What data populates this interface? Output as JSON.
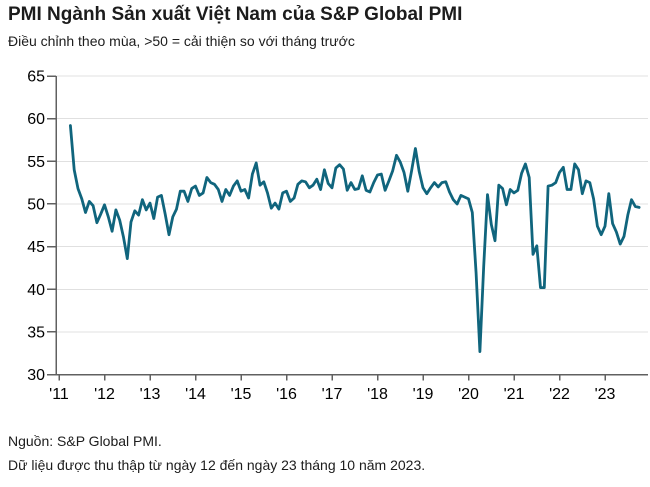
{
  "header": {
    "title": "PMI Ngành Sản xuất Việt Nam của S&P Global PMI",
    "subtitle": "Điều chỉnh theo mùa, >50 = cải thiện so với tháng trước"
  },
  "footer": {
    "source": "Nguồn: S&P Global PMI.",
    "note": "Dữ liệu được thu thập từ ngày 12 đến ngày 23 tháng 10 năm 2023."
  },
  "chart_data": {
    "type": "line",
    "title": "PMI Ngành Sản xuất Việt Nam của S&P Global PMI",
    "frequency": "monthly",
    "x_start": "2011-04",
    "x_end": "2023-10",
    "xlabel": "",
    "ylabel": "",
    "ylim": [
      30,
      65
    ],
    "y_ticks": [
      30,
      35,
      40,
      45,
      50,
      55,
      60,
      65
    ],
    "x_tick_labels": [
      "'11",
      "'12",
      "'13",
      "'14",
      "'15",
      "'16",
      "'17",
      "'18",
      "'19",
      "'20",
      "'21",
      "'22",
      "'23"
    ],
    "grid": "horizontal",
    "legend": "none",
    "line_color": "#10657d",
    "grid_color": "#e0e0e0",
    "axis_color": "#606060",
    "label_color": "#000000",
    "values": [
      59.2,
      54.0,
      51.8,
      50.6,
      49.0,
      50.3,
      49.8,
      47.8,
      48.8,
      49.9,
      48.5,
      46.8,
      49.3,
      48.1,
      46.1,
      43.6,
      47.9,
      49.2,
      48.7,
      50.5,
      49.3,
      50.1,
      48.3,
      50.8,
      51.0,
      48.8,
      46.4,
      48.5,
      49.4,
      51.5,
      51.5,
      50.3,
      51.8,
      52.1,
      51.0,
      51.3,
      53.1,
      52.5,
      52.3,
      51.7,
      50.3,
      51.7,
      51.0,
      52.1,
      52.7,
      51.5,
      51.7,
      50.7,
      53.5,
      54.8,
      52.2,
      52.6,
      51.3,
      49.5,
      50.1,
      49.4,
      51.3,
      51.5,
      50.3,
      50.7,
      52.3,
      52.7,
      52.6,
      51.9,
      52.2,
      52.9,
      51.7,
      54.0,
      52.4,
      51.9,
      54.2,
      54.6,
      54.1,
      51.6,
      52.5,
      51.7,
      51.8,
      53.3,
      51.6,
      51.4,
      52.5,
      53.4,
      53.5,
      51.6,
      52.7,
      53.9,
      55.7,
      54.9,
      53.7,
      51.5,
      53.9,
      56.5,
      53.8,
      51.9,
      51.2,
      51.9,
      52.5,
      52.0,
      52.5,
      52.6,
      51.4,
      50.5,
      50.0,
      51.0,
      50.8,
      50.6,
      49.0,
      41.9,
      32.7,
      42.7,
      51.1,
      47.6,
      45.7,
      52.2,
      51.8,
      49.9,
      51.7,
      51.3,
      51.6,
      53.6,
      54.7,
      53.1,
      44.1,
      45.1,
      40.2,
      40.2,
      52.1,
      52.2,
      52.5,
      53.7,
      54.3,
      51.7,
      51.7,
      54.7,
      54.0,
      51.2,
      52.7,
      52.5,
      50.6,
      47.4,
      46.4,
      47.4,
      51.2,
      47.7,
      46.7,
      45.3,
      46.2,
      48.7,
      50.5,
      49.7,
      49.6
    ]
  }
}
